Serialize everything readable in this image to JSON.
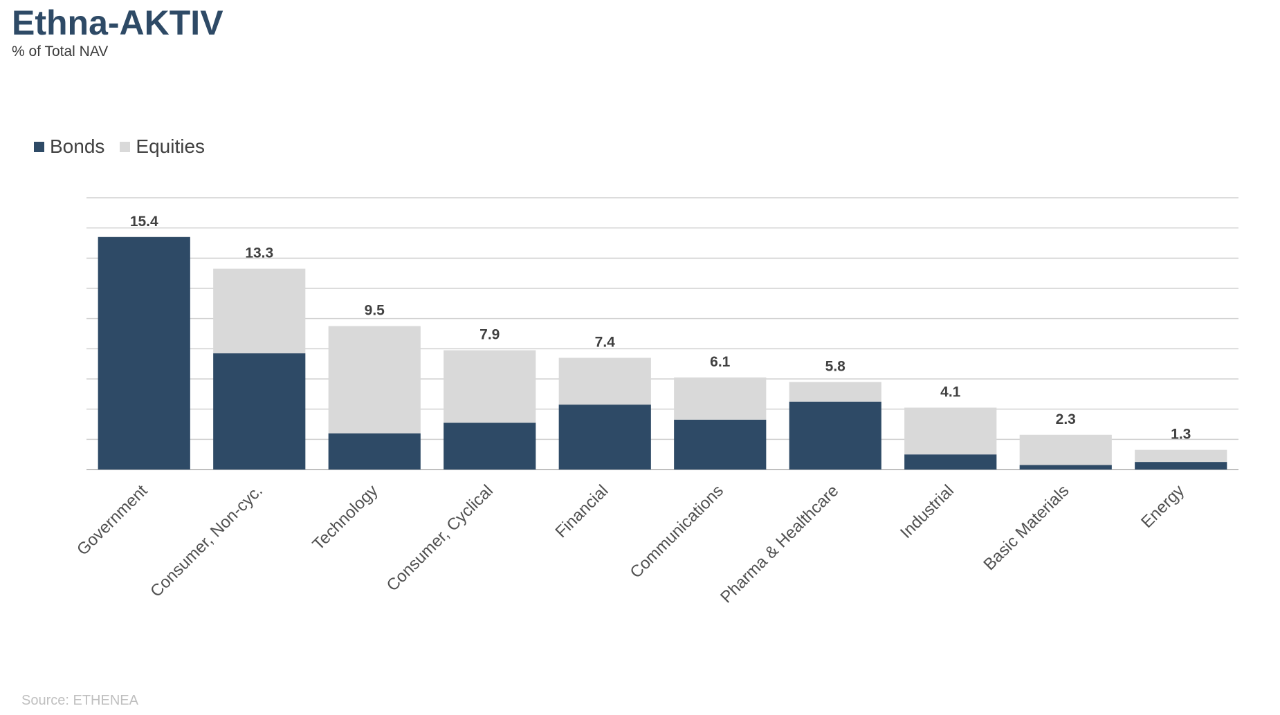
{
  "header": {
    "title": "Ethna-AKTIV",
    "subtitle": "% of Total NAV"
  },
  "footer": {
    "source": "Source: ETHENEA"
  },
  "colors": {
    "bonds": "#2e4a66",
    "equities": "#d9d9d9",
    "grid": "#d0d0d0",
    "axis": "#bfbfbf",
    "label": "#404040"
  },
  "chart_data": {
    "type": "bar",
    "stacked": true,
    "categories": [
      "Government",
      "Consumer, Non-cyc.",
      "Technology",
      "Consumer, Cyclical",
      "Financial",
      "Communications",
      "Pharma & Healthcare",
      "Industrial",
      "Basic Materials",
      "Energy"
    ],
    "series": [
      {
        "name": "Bonds",
        "values": [
          15.4,
          7.7,
          2.4,
          3.1,
          4.3,
          3.3,
          4.5,
          1.0,
          0.3,
          0.5
        ]
      },
      {
        "name": "Equities",
        "values": [
          0.0,
          5.6,
          7.1,
          4.8,
          3.1,
          2.8,
          1.3,
          3.1,
          2.0,
          0.8
        ]
      }
    ],
    "totals": [
      "15.4",
      "13.3",
      "9.5",
      "7.9",
      "7.4",
      "6.1",
      "5.8",
      "4.1",
      "2.3",
      "1.3"
    ],
    "ylim": [
      0,
      18
    ],
    "ytick_step": 2,
    "grid": true,
    "legend_position": "top-left"
  }
}
